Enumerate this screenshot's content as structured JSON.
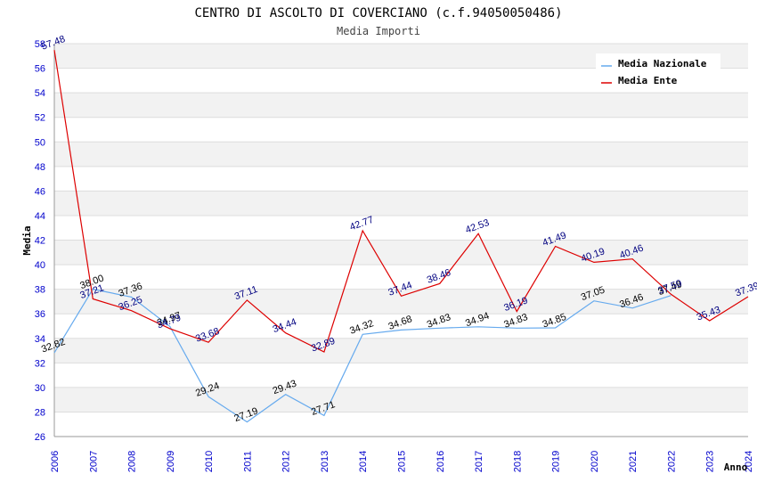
{
  "chart_data": {
    "type": "line",
    "title": "CENTRO DI ASCOLTO DI COVERCIANO (c.f.94050050486)",
    "subtitle": "Media Importi",
    "xlabel": "Anno",
    "ylabel": "Media",
    "ylim": [
      26,
      58
    ],
    "yticks": [
      26,
      28,
      30,
      32,
      34,
      36,
      38,
      40,
      42,
      44,
      46,
      48,
      50,
      52,
      54,
      56,
      58
    ],
    "grid": true,
    "legend_position": "top-right",
    "categories": [
      "2006",
      "2007",
      "2008",
      "2009",
      "2010",
      "2011",
      "2012",
      "2013",
      "2014",
      "2015",
      "2016",
      "2017",
      "2018",
      "2019",
      "2020",
      "2021",
      "2022",
      "2023",
      "2024"
    ],
    "series": [
      {
        "name": "Media Nazionale",
        "color": "#66aaee",
        "label_color": "#000000",
        "values": [
          32.82,
          38.0,
          37.36,
          34.97,
          29.24,
          27.19,
          29.43,
          27.71,
          34.32,
          34.68,
          34.83,
          34.94,
          34.83,
          34.85,
          37.05,
          36.46,
          37.49,
          null,
          null
        ],
        "labels": [
          "32.82",
          "38.00",
          "37.36",
          "34.97",
          "29.24",
          "27.19",
          "29.43",
          "27.71",
          "34.32",
          "34.68",
          "34.83",
          "34.94",
          "34.83",
          "34.85",
          "37.05",
          "36.46",
          "37.49",
          null,
          null
        ]
      },
      {
        "name": "Media Ente",
        "color": "#dd0000",
        "label_color": "#000080",
        "values": [
          57.48,
          37.21,
          36.25,
          34.79,
          33.68,
          37.11,
          34.44,
          32.89,
          42.77,
          37.44,
          38.46,
          42.53,
          36.19,
          41.49,
          40.19,
          40.46,
          37.59,
          35.43,
          37.39
        ],
        "labels": [
          "57.48",
          "37.21",
          "36.25",
          "34.79",
          "33.68",
          "37.11",
          "34.44",
          "32.89",
          "42.77",
          "37.44",
          "38.46",
          "42.53",
          "36.19",
          "41.49",
          "40.19",
          "40.46",
          "37.59",
          "35.43",
          "37.39"
        ]
      }
    ]
  }
}
